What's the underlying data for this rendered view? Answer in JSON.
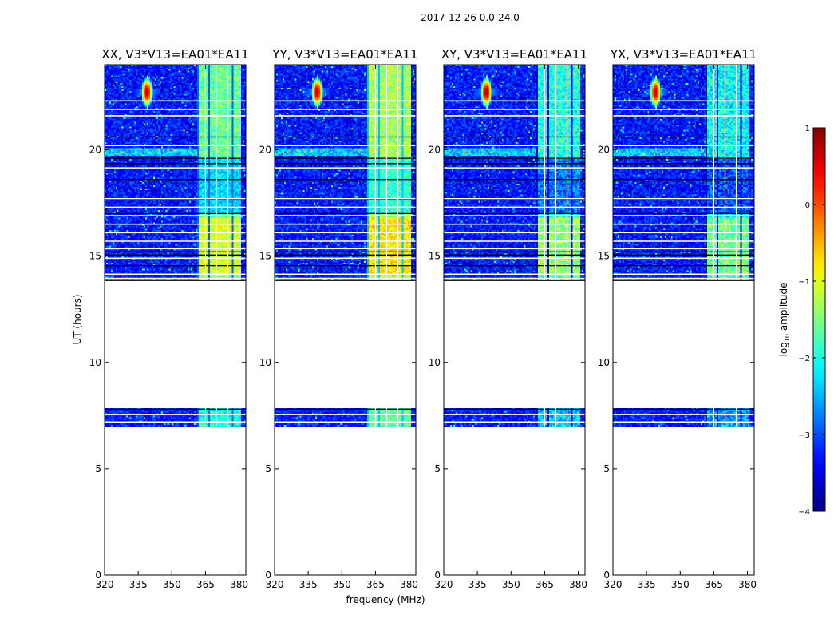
{
  "figure": {
    "suptitle": "2017-12-26 0.0-24.0",
    "xlabel": "frequency (MHz)",
    "ylabel": "UT (hours)",
    "colorbar_label_main": "log",
    "colorbar_label_sub": "10",
    "colorbar_label_tail": " amplitude"
  },
  "chart_data": {
    "type": "heatmap",
    "title": "2017-12-26 0.0-24.0",
    "xlabel": "frequency (MHz)",
    "ylabel": "UT (hours)",
    "xlim": [
      320,
      383
    ],
    "ylim": [
      0,
      24
    ],
    "xticks": [
      320,
      335,
      350,
      365,
      380
    ],
    "xtick_labels": [
      "320",
      "335",
      "350",
      "365",
      "380"
    ],
    "yticks": [
      0,
      5,
      10,
      15,
      20
    ],
    "ytick_labels": [
      "0",
      "5",
      "10",
      "15",
      "20"
    ],
    "colorbar": {
      "label": "log10 amplitude",
      "range": [
        -4,
        1
      ],
      "ticks": [
        -4,
        -3,
        -2,
        -1,
        0,
        1
      ],
      "tick_labels": [
        "−4",
        "−3",
        "−2",
        "−1",
        "0",
        "1"
      ],
      "colormap": "jet"
    },
    "panels": [
      {
        "title": "XX, V3*V13=EA01*EA11",
        "strength": 1.0
      },
      {
        "title": "YY, V3*V13=EA01*EA11",
        "strength": 1.15
      },
      {
        "title": "XY, V3*V13=EA01*EA11",
        "strength": 0.85
      },
      {
        "title": "YX, V3*V13=EA01*EA11",
        "strength": 0.8
      }
    ],
    "data_blocks_ut": [
      [
        7.0,
        7.85
      ],
      [
        13.9,
        24.0
      ]
    ],
    "bright_band_mhz": [
      361.5,
      381.0
    ],
    "point_source": {
      "freq_mhz": 339,
      "ut": 22.7,
      "log_amp": 0.7
    },
    "background_log_amp": -3.3
  }
}
